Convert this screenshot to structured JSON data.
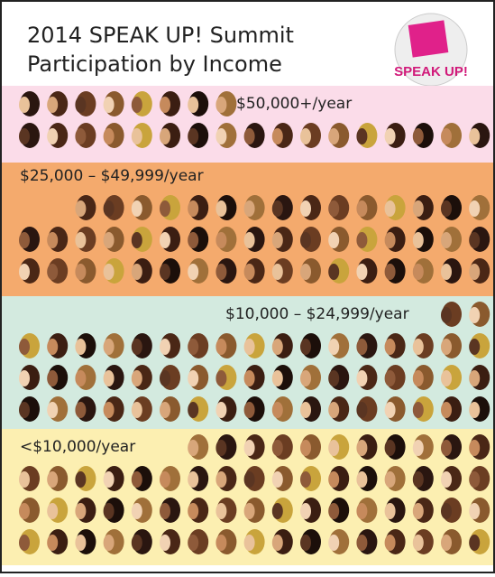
{
  "chart_data": {
    "type": "pictograph",
    "title_lines": [
      "2014 SPEAK UP! Summit",
      "Participation by Income"
    ],
    "logo_text": "SPEAK UP!",
    "categories": [
      "$50,000+/year",
      "$25,000 – $49,999/year",
      "$10,000 – $24,999/year",
      "<$10,000/year"
    ],
    "values": [
      25,
      49,
      53,
      62
    ],
    "colors": [
      "#fbdce9",
      "#f4aa6d",
      "#d3eadf",
      "#fcefb1"
    ]
  }
}
